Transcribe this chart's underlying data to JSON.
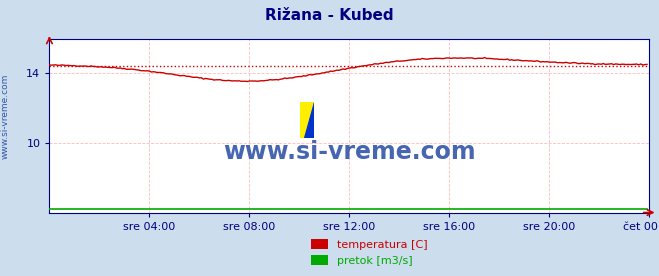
{
  "title": "Rižana - Kubed",
  "title_color": "#000080",
  "bg_color": "#ccdded",
  "plot_bg_color": "#ffffff",
  "grid_color": "#ffbbbb",
  "grid_style": "--",
  "watermark_text": "www.si-vreme.com",
  "watermark_color": "#3355aa",
  "sidebar_text": "www.si-vreme.com",
  "sidebar_color": "#3355aa",
  "tick_color": "#000080",
  "xlim": [
    0,
    288
  ],
  "ylim": [
    6.0,
    16.0
  ],
  "yticks": [
    10,
    14
  ],
  "xtick_labels": [
    "sre 04:00",
    "sre 08:00",
    "sre 12:00",
    "sre 16:00",
    "sre 20:00",
    "čet 00:00"
  ],
  "xtick_positions": [
    48,
    96,
    144,
    192,
    240,
    288
  ],
  "temp_color": "#cc0000",
  "flow_color": "#00aa00",
  "avg_color": "#cc0000",
  "avg_linestyle": ":",
  "legend_temp_label": "temperatura [C]",
  "legend_flow_label": "pretok [m3/s]",
  "temp_avg": 14.4,
  "flow_value": 6.2,
  "n_points": 288
}
